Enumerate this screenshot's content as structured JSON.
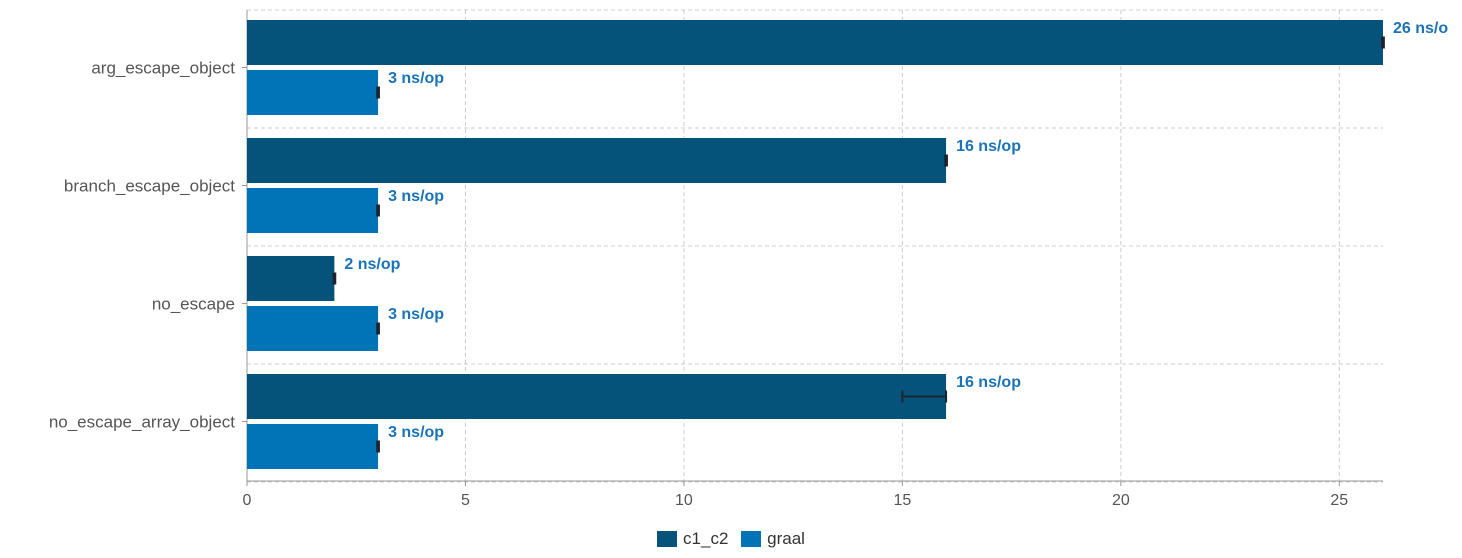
{
  "chart_data": {
    "type": "bar",
    "orientation": "horizontal",
    "categories": [
      "arg_escape_object",
      "branch_escape_object",
      "no_escape",
      "no_escape_array_object"
    ],
    "series": [
      {
        "name": "c1_c2",
        "color": "#05527a",
        "values": [
          26,
          16,
          2,
          16
        ],
        "error": [
          [
            25.98,
            26.02
          ],
          [
            15.98,
            16.02
          ],
          [
            1.98,
            2.02
          ],
          [
            15.0,
            16.0
          ]
        ],
        "labels": [
          "26 ns/o",
          "16 ns/op",
          "2 ns/op",
          "16 ns/op"
        ]
      },
      {
        "name": "graal",
        "color": "#0074b7",
        "values": [
          3,
          3,
          3,
          3
        ],
        "error": [
          [
            2.98,
            3.02
          ],
          [
            2.98,
            3.02
          ],
          [
            2.98,
            3.02
          ],
          [
            2.98,
            3.02
          ]
        ],
        "labels": [
          "3 ns/op",
          "3 ns/op",
          "3 ns/op",
          "3 ns/op"
        ]
      }
    ],
    "xlim": [
      0,
      26
    ],
    "xticks": [
      "0",
      "5",
      "10",
      "15",
      "20",
      "25"
    ],
    "grid": true,
    "legend_position": "bottom-center"
  }
}
